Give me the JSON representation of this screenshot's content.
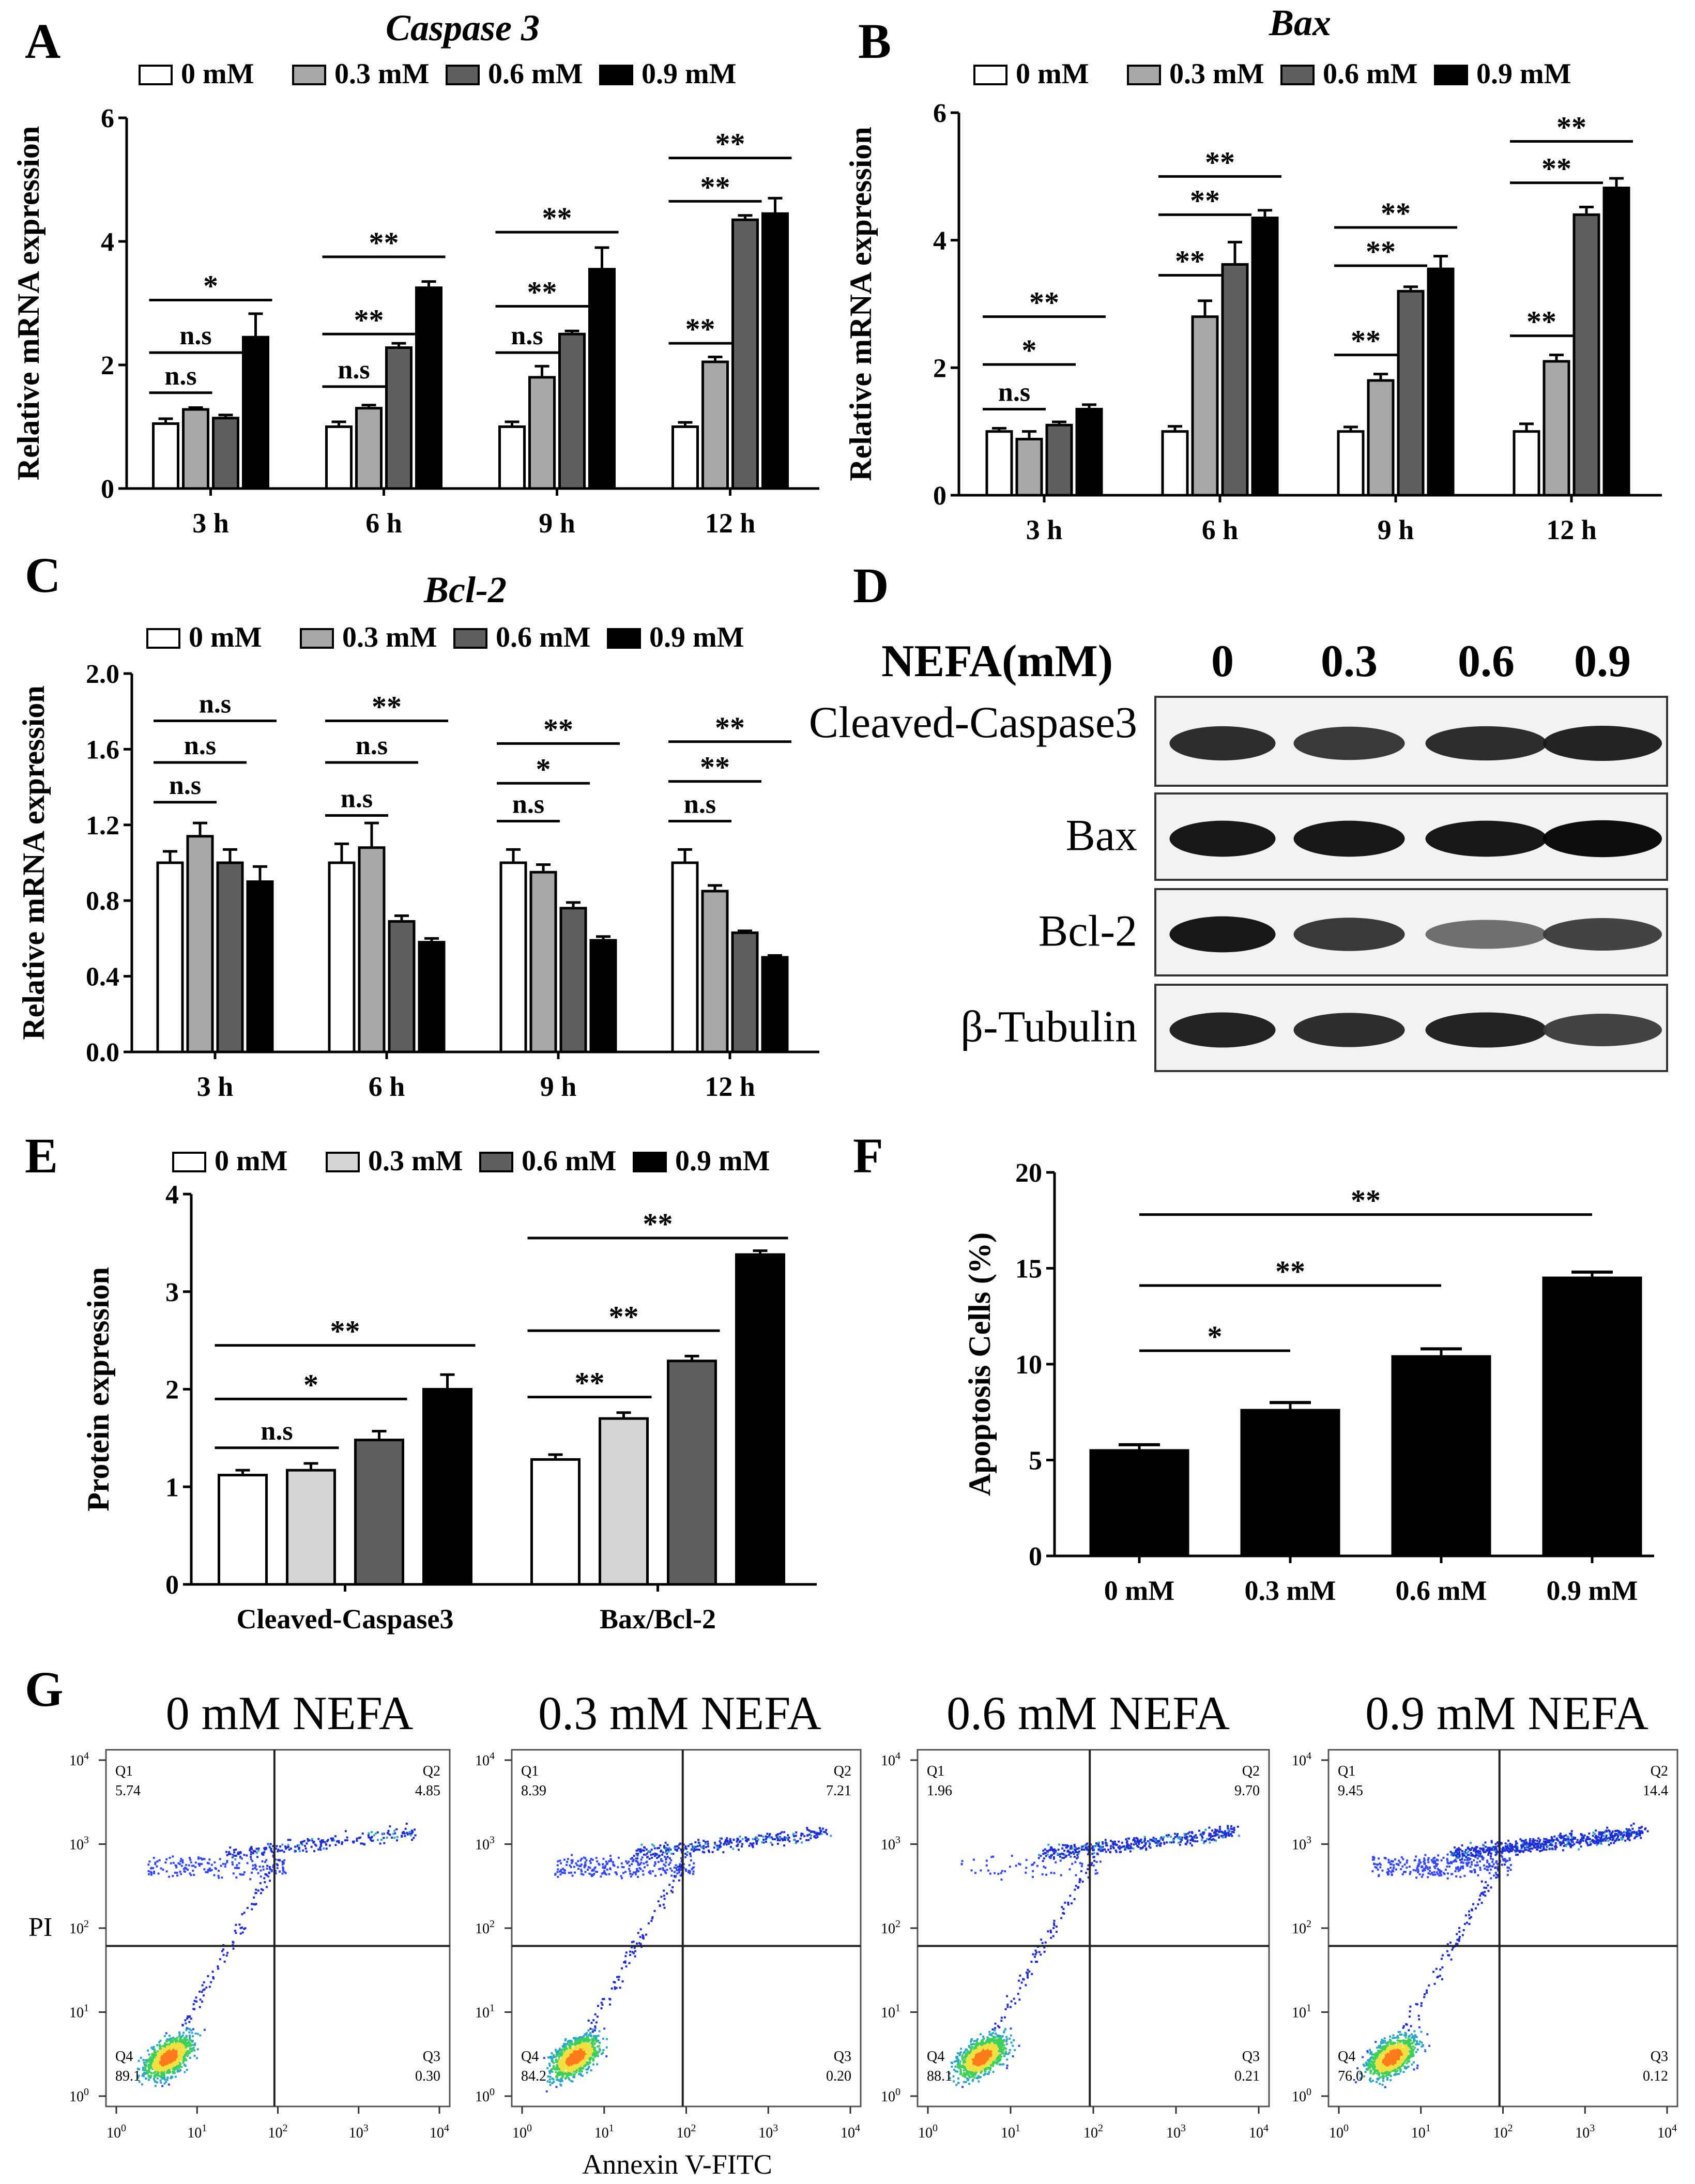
{
  "colors": {
    "dose": [
      "#ffffff",
      "#a8a8a8",
      "#5f5f5f",
      "#000000"
    ],
    "dose_protein": [
      "#ffffff",
      "#d4d4d4",
      "#5f5f5f",
      "#000000"
    ],
    "axis": "#000000"
  },
  "legend_labels": [
    "0 mM",
    "0.3 mM",
    "0.6 mM",
    "0.9 mM"
  ],
  "panel_letters": [
    "A",
    "B",
    "C",
    "D",
    "E",
    "F",
    "G"
  ],
  "chart_data": [
    {
      "id": "A",
      "type": "bar",
      "title": "Caspase 3",
      "ylabel": "Relative mRNA expression",
      "ylim": [
        0,
        6
      ],
      "yticks": [
        "0",
        "2",
        "4",
        "6"
      ],
      "categories": [
        "3 h",
        "6 h",
        "9 h",
        "12 h"
      ],
      "series": [
        {
          "name": "0 mM",
          "values": [
            1.05,
            1.0,
            1.0,
            1.0
          ],
          "errors": [
            0.08,
            0.08,
            0.08,
            0.07
          ]
        },
        {
          "name": "0.3 mM",
          "values": [
            1.28,
            1.3,
            1.8,
            2.05
          ],
          "errors": [
            0.03,
            0.05,
            0.18,
            0.08
          ]
        },
        {
          "name": "0.6 mM",
          "values": [
            1.14,
            2.28,
            2.5,
            4.35
          ],
          "errors": [
            0.05,
            0.07,
            0.05,
            0.07
          ]
        },
        {
          "name": "0.9 mM",
          "values": [
            2.45,
            3.25,
            3.55,
            4.45
          ],
          "errors": [
            0.38,
            0.1,
            0.35,
            0.25
          ]
        }
      ],
      "sig": [
        {
          "cat": 0,
          "s1": 0,
          "s2": 1,
          "y": 1.55,
          "label": "n.s"
        },
        {
          "cat": 0,
          "s1": 0,
          "s2": 2,
          "y": 2.2,
          "label": "n.s"
        },
        {
          "cat": 0,
          "s1": 0,
          "s2": 3,
          "y": 3.05,
          "label": "*"
        },
        {
          "cat": 1,
          "s1": 0,
          "s2": 1,
          "y": 1.65,
          "label": "n.s"
        },
        {
          "cat": 1,
          "s1": 0,
          "s2": 2,
          "y": 2.5,
          "label": "**"
        },
        {
          "cat": 1,
          "s1": 0,
          "s2": 3,
          "y": 3.75,
          "label": "**"
        },
        {
          "cat": 2,
          "s1": 0,
          "s2": 1,
          "y": 2.2,
          "label": "n.s"
        },
        {
          "cat": 2,
          "s1": 0,
          "s2": 2,
          "y": 2.95,
          "label": "**"
        },
        {
          "cat": 2,
          "s1": 0,
          "s2": 3,
          "y": 4.15,
          "label": "**"
        },
        {
          "cat": 3,
          "s1": 0,
          "s2": 1,
          "y": 2.35,
          "label": "**"
        },
        {
          "cat": 3,
          "s1": 0,
          "s2": 2,
          "y": 4.65,
          "label": "**"
        },
        {
          "cat": 3,
          "s1": 0,
          "s2": 3,
          "y": 5.35,
          "label": "**"
        }
      ]
    },
    {
      "id": "B",
      "type": "bar",
      "title": "Bax",
      "ylabel": "Relative mRNA expression",
      "ylim": [
        0,
        6
      ],
      "yticks": [
        "0",
        "2",
        "4",
        "6"
      ],
      "categories": [
        "3 h",
        "6 h",
        "9 h",
        "12 h"
      ],
      "series": [
        {
          "name": "0 mM",
          "values": [
            1.0,
            1.0,
            1.0,
            1.0
          ],
          "errors": [
            0.05,
            0.08,
            0.07,
            0.12
          ]
        },
        {
          "name": "0.3 mM",
          "values": [
            0.88,
            2.8,
            1.8,
            2.1
          ],
          "errors": [
            0.12,
            0.25,
            0.1,
            0.1
          ]
        },
        {
          "name": "0.6 mM",
          "values": [
            1.1,
            3.62,
            3.2,
            4.4
          ],
          "errors": [
            0.05,
            0.35,
            0.07,
            0.12
          ]
        },
        {
          "name": "0.9 mM",
          "values": [
            1.35,
            4.35,
            3.55,
            4.82
          ],
          "errors": [
            0.07,
            0.12,
            0.2,
            0.15
          ]
        }
      ],
      "sig": [
        {
          "cat": 0,
          "s1": 0,
          "s2": 1,
          "y": 1.35,
          "label": "n.s"
        },
        {
          "cat": 0,
          "s1": 0,
          "s2": 2,
          "y": 2.05,
          "label": "*"
        },
        {
          "cat": 0,
          "s1": 0,
          "s2": 3,
          "y": 2.8,
          "label": "**"
        },
        {
          "cat": 1,
          "s1": 0,
          "s2": 1,
          "y": 3.45,
          "label": "**"
        },
        {
          "cat": 1,
          "s1": 0,
          "s2": 2,
          "y": 4.4,
          "label": "**"
        },
        {
          "cat": 1,
          "s1": 0,
          "s2": 3,
          "y": 5.0,
          "label": "**"
        },
        {
          "cat": 2,
          "s1": 0,
          "s2": 1,
          "y": 2.2,
          "label": "**"
        },
        {
          "cat": 2,
          "s1": 0,
          "s2": 2,
          "y": 3.6,
          "label": "**"
        },
        {
          "cat": 2,
          "s1": 0,
          "s2": 3,
          "y": 4.2,
          "label": "**"
        },
        {
          "cat": 3,
          "s1": 0,
          "s2": 1,
          "y": 2.5,
          "label": "**"
        },
        {
          "cat": 3,
          "s1": 0,
          "s2": 2,
          "y": 4.9,
          "label": "**"
        },
        {
          "cat": 3,
          "s1": 0,
          "s2": 3,
          "y": 5.55,
          "label": "**"
        }
      ]
    },
    {
      "id": "C",
      "type": "bar",
      "title": "Bcl-2",
      "ylabel": "Relative mRNA expression",
      "ylim": [
        0,
        2.0
      ],
      "yticks": [
        "0.0",
        "0.4",
        "0.8",
        "1.2",
        "1.6",
        "2.0"
      ],
      "categories": [
        "3 h",
        "6 h",
        "9 h",
        "12 h"
      ],
      "series": [
        {
          "name": "0 mM",
          "values": [
            1.0,
            1.0,
            1.0,
            1.0
          ],
          "errors": [
            0.06,
            0.1,
            0.07,
            0.07
          ]
        },
        {
          "name": "0.3 mM",
          "values": [
            1.14,
            1.08,
            0.95,
            0.85
          ],
          "errors": [
            0.07,
            0.13,
            0.04,
            0.03
          ]
        },
        {
          "name": "0.6 mM",
          "values": [
            1.0,
            0.69,
            0.76,
            0.63
          ],
          "errors": [
            0.07,
            0.03,
            0.03,
            0.01
          ]
        },
        {
          "name": "0.9 mM",
          "values": [
            0.9,
            0.58,
            0.59,
            0.5
          ],
          "errors": [
            0.08,
            0.02,
            0.02,
            0.01
          ]
        }
      ],
      "sig": [
        {
          "cat": 0,
          "s1": 0,
          "s2": 1,
          "y": 1.32,
          "label": "n.s"
        },
        {
          "cat": 0,
          "s1": 0,
          "s2": 2,
          "y": 1.53,
          "label": "n.s"
        },
        {
          "cat": 0,
          "s1": 0,
          "s2": 3,
          "y": 1.75,
          "label": "n.s"
        },
        {
          "cat": 1,
          "s1": 0,
          "s2": 1,
          "y": 1.25,
          "label": "n.s"
        },
        {
          "cat": 1,
          "s1": 0,
          "s2": 2,
          "y": 1.53,
          "label": "n.s"
        },
        {
          "cat": 1,
          "s1": 0,
          "s2": 3,
          "y": 1.75,
          "label": "**"
        },
        {
          "cat": 2,
          "s1": 0,
          "s2": 1,
          "y": 1.22,
          "label": "n.s"
        },
        {
          "cat": 2,
          "s1": 0,
          "s2": 2,
          "y": 1.42,
          "label": "*"
        },
        {
          "cat": 2,
          "s1": 0,
          "s2": 3,
          "y": 1.63,
          "label": "**"
        },
        {
          "cat": 3,
          "s1": 0,
          "s2": 1,
          "y": 1.22,
          "label": "n.s"
        },
        {
          "cat": 3,
          "s1": 0,
          "s2": 2,
          "y": 1.43,
          "label": "**"
        },
        {
          "cat": 3,
          "s1": 0,
          "s2": 3,
          "y": 1.64,
          "label": "**"
        }
      ]
    },
    {
      "id": "E",
      "type": "bar",
      "title": "",
      "ylabel": "Protein expression",
      "ylim": [
        0,
        4
      ],
      "yticks": [
        "0",
        "1",
        "2",
        "3",
        "4"
      ],
      "categories": [
        "Cleaved-Caspase3",
        "Bax/Bcl-2"
      ],
      "series": [
        {
          "name": "0 mM",
          "values": [
            1.12,
            1.28
          ],
          "errors": [
            0.05,
            0.05
          ]
        },
        {
          "name": "0.3 mM",
          "values": [
            1.17,
            1.7
          ],
          "errors": [
            0.07,
            0.06
          ]
        },
        {
          "name": "0.6 mM",
          "values": [
            1.48,
            2.29
          ],
          "errors": [
            0.09,
            0.05
          ]
        },
        {
          "name": "0.9 mM",
          "values": [
            2.0,
            3.38
          ],
          "errors": [
            0.15,
            0.04
          ]
        }
      ],
      "sig": [
        {
          "cat": 0,
          "s1": 0,
          "s2": 1,
          "y": 1.4,
          "label": "n.s"
        },
        {
          "cat": 0,
          "s1": 0,
          "s2": 2,
          "y": 1.9,
          "label": "*"
        },
        {
          "cat": 0,
          "s1": 0,
          "s2": 3,
          "y": 2.45,
          "label": "**"
        },
        {
          "cat": 1,
          "s1": 0,
          "s2": 1,
          "y": 1.92,
          "label": "**"
        },
        {
          "cat": 1,
          "s1": 0,
          "s2": 2,
          "y": 2.6,
          "label": "**"
        },
        {
          "cat": 1,
          "s1": 0,
          "s2": 3,
          "y": 3.55,
          "label": "**"
        }
      ]
    },
    {
      "id": "F",
      "type": "bar",
      "title": "",
      "ylabel": "Apoptosis Cells (%)",
      "ylim": [
        0,
        20
      ],
      "yticks": [
        "0",
        "5",
        "10",
        "15",
        "20"
      ],
      "categories": [
        "0 mM",
        "0.3 mM",
        "0.6 mM",
        "0.9 mM"
      ],
      "values": [
        5.5,
        7.6,
        10.4,
        14.5
      ],
      "errors": [
        0.3,
        0.4,
        0.4,
        0.3
      ],
      "sig": [
        {
          "i1": 0,
          "i2": 1,
          "y": 10.7,
          "label": "*"
        },
        {
          "i1": 0,
          "i2": 2,
          "y": 14.1,
          "label": "**"
        },
        {
          "i1": 0,
          "i2": 3,
          "y": 17.8,
          "label": "**"
        }
      ]
    },
    {
      "id": "G",
      "type": "scatter",
      "xlabel": "Annexin V-FITC",
      "ylabel": "PI",
      "decade_labels": [
        "10",
        "0",
        "1",
        "2",
        "3",
        "4"
      ],
      "panels": [
        {
          "title": "0 mM NEFA",
          "quadrants": {
            "Q1": "5.74",
            "Q2": "4.85",
            "Q3": "0.30",
            "Q4": "89.1"
          }
        },
        {
          "title": "0.3 mM NEFA",
          "quadrants": {
            "Q1": "8.39",
            "Q2": "7.21",
            "Q3": "0.20",
            "Q4": "84.2"
          }
        },
        {
          "title": "0.6 mM NEFA",
          "quadrants": {
            "Q1": "1.96",
            "Q2": "9.70",
            "Q3": "0.21",
            "Q4": "88.1"
          }
        },
        {
          "title": "0.9 mM NEFA",
          "quadrants": {
            "Q1": "9.45",
            "Q2": "14.4",
            "Q3": "0.12",
            "Q4": "76.0"
          }
        }
      ]
    }
  ],
  "western_blot": {
    "header": "NEFA(mM)",
    "lanes": [
      "0",
      "0.3",
      "0.6",
      "0.9"
    ],
    "rows": [
      {
        "label": "Cleaved-Caspase3",
        "intensity": [
          0.85,
          0.8,
          0.85,
          0.9
        ]
      },
      {
        "label": "Bax",
        "intensity": [
          0.95,
          0.95,
          0.95,
          1.0
        ]
      },
      {
        "label": "Bcl-2",
        "intensity": [
          0.95,
          0.8,
          0.55,
          0.75
        ]
      },
      {
        "label": "β-Tubulin",
        "intensity": [
          0.9,
          0.85,
          0.9,
          0.75
        ]
      }
    ]
  }
}
